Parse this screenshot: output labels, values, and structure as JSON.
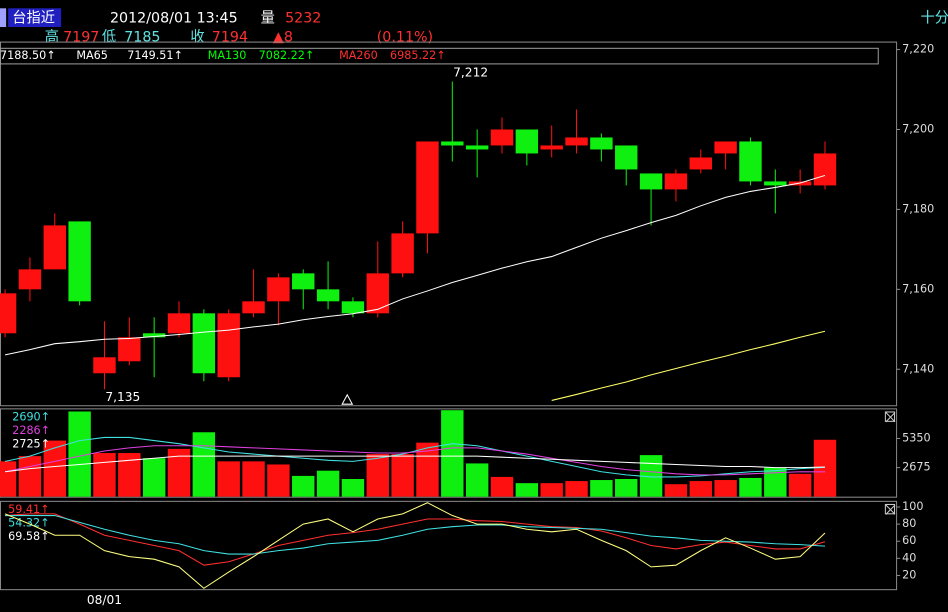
{
  "header": {
    "symbol": "台指近",
    "datetime": "2012/08/01 13:45",
    "volume_label": "量",
    "volume": 5232,
    "period": "十分",
    "high_label": "高",
    "high": 7197,
    "low_label": "低",
    "low": 7185,
    "close_label": "收",
    "close": 7194,
    "change": "▲8",
    "change_pct": "(0.11%)"
  },
  "chart_data": [
    {
      "type": "candlestick",
      "up_color": "#ff1010",
      "down_color": "#10f010",
      "categories": [
        null,
        null,
        null,
        null,
        "08/01",
        null,
        null,
        null,
        null,
        null,
        null,
        null,
        null,
        null,
        null,
        null,
        null,
        null,
        null,
        null,
        null,
        null,
        null,
        null,
        null,
        null,
        null,
        null,
        null,
        null,
        null,
        null,
        null,
        null
      ],
      "open": [
        7149,
        7160,
        7165,
        7177,
        7139,
        7142,
        7149,
        7149,
        7154,
        7138,
        7154,
        7157,
        7164,
        7160,
        7157,
        7154,
        7164,
        7174,
        7197,
        7196,
        7196,
        7200,
        7195,
        7196,
        7198,
        7196,
        7189,
        7185,
        7190,
        7194,
        7197,
        7187,
        7186,
        7186
      ],
      "high": [
        7160,
        7168,
        7179,
        7177,
        7152,
        7153,
        7153,
        7157,
        7155,
        7155,
        7165,
        7164,
        7165,
        7167,
        7158,
        7172,
        7177,
        7197,
        7212,
        7200,
        7203,
        7200,
        7201,
        7205,
        7199,
        7196,
        7189,
        7190,
        7195,
        7197,
        7198,
        7190,
        7190,
        7197
      ],
      "low": [
        7148,
        7157,
        7165,
        7156,
        7135,
        7141,
        7138,
        7148,
        7137,
        7137,
        7153,
        7151,
        7155,
        7155,
        7153,
        7153,
        7163,
        7169,
        7192,
        7188,
        7194,
        7191,
        7193,
        7194,
        7192,
        7186,
        7176,
        7182,
        7189,
        7190,
        7186,
        7179,
        7184,
        7185
      ],
      "close": [
        7159,
        7165,
        7176,
        7157,
        7143,
        7148,
        7148,
        7154,
        7139,
        7154,
        7157,
        7163,
        7160,
        7157,
        7154,
        7164,
        7174,
        7197,
        7196,
        7195,
        7200,
        7194,
        7196,
        7198,
        7195,
        7190,
        7185,
        7189,
        7193,
        7197,
        7187,
        7186,
        7187,
        7194
      ],
      "series": [
        {
          "label": "7188.50↑",
          "color": "#ffffff",
          "label_color": "#ffffff",
          "values": [
            7143.6,
            7144.9,
            7146.4,
            7146.9,
            7147.5,
            7147.7,
            7148.2,
            7148.7,
            7149.3,
            7149.8,
            7150.6,
            7151.3,
            7152.4,
            7153.2,
            7153.9,
            7155,
            7157.6,
            7159.6,
            7161.7,
            7163.5,
            7165.3,
            7166.9,
            7168.2,
            7170.5,
            7172.8,
            7174.7,
            7176.7,
            7178.5,
            7180.9,
            7183,
            7184.5,
            7185.5,
            7186.6,
            7188.5
          ]
        },
        {
          "name": "MA65",
          "label": "7149.51↑",
          "color": "#ffff66",
          "label_color": "#ffffff",
          "values": [
            null,
            null,
            null,
            null,
            null,
            null,
            null,
            null,
            null,
            null,
            null,
            null,
            null,
            null,
            null,
            null,
            null,
            null,
            null,
            null,
            null,
            null,
            7132.2,
            7133.7,
            7135.3,
            7136.8,
            7138.6,
            7140.2,
            7141.8,
            7143.3,
            7144.9,
            7146.4,
            7148,
            7149.5
          ]
        },
        {
          "name": "MA130",
          "label": "7082.22↑",
          "color": "#00ff00",
          "label_color": "#00ff00"
        },
        {
          "name": "MA260",
          "label": "6985.22↑",
          "color": "#ff3030",
          "label_color": "#ff3030"
        }
      ],
      "annotations": [
        {
          "value": 7212,
          "label": "7,212"
        },
        {
          "value": 7135,
          "label": "7,135"
        }
      ],
      "ylim": [
        7131,
        7222
      ],
      "yticks": [
        {
          "value": 7220,
          "label": "7,220"
        },
        {
          "value": 7200,
          "label": "7,200"
        },
        {
          "value": 7180,
          "label": "7,180"
        },
        {
          "value": 7160,
          "label": "7,160"
        },
        {
          "value": 7140,
          "label": "7,140"
        }
      ]
    },
    {
      "type": "bar",
      "values": [
        3247,
        3725,
        5157,
        7831,
        4011,
        4011,
        3534,
        4393,
        5921,
        3247,
        3247,
        2960,
        1910,
        2388,
        1624,
        3916,
        3916,
        4966,
        7950,
        3056,
        1815,
        1242,
        1242,
        1433,
        1528,
        1624,
        3820,
        1146,
        1433,
        1528,
        1719,
        2675,
        2101,
        5232
      ],
      "series": [
        {
          "label": "2690↑",
          "color": "#40e0e0",
          "values": [
            3247,
            3725,
            4489,
            5157,
            5444,
            5444,
            5157,
            4871,
            4489,
            4107,
            3916,
            3725,
            3534,
            3343,
            3247,
            3534,
            3916,
            4489,
            4871,
            4680,
            4202,
            3725,
            3247,
            2770,
            2292,
            2006,
            1815,
            1815,
            1910,
            2101,
            2292,
            2388,
            2579,
            2690
          ]
        },
        {
          "label": "2286↑",
          "color": "#e040e0",
          "values": [
            2292,
            2770,
            3247,
            3725,
            4202,
            4489,
            4680,
            4680,
            4680,
            4584,
            4489,
            4393,
            4298,
            4202,
            4107,
            4011,
            4011,
            4202,
            4489,
            4489,
            4202,
            3916,
            3534,
            3152,
            2770,
            2483,
            2292,
            2101,
            2006,
            2006,
            2101,
            2197,
            2292,
            2286
          ]
        },
        {
          "label": "2725↑",
          "color": "#ffffff",
          "values": [
            2292,
            2579,
            2770,
            2961,
            3152,
            3343,
            3534,
            3725,
            3725,
            3725,
            3725,
            3725,
            3725,
            3725,
            3725,
            3725,
            3725,
            3725,
            3725,
            3725,
            3629,
            3534,
            3438,
            3343,
            3247,
            3152,
            3056,
            2961,
            2865,
            2770,
            2770,
            2674,
            2674,
            2725
          ]
        }
      ],
      "ylim": [
        0,
        8025
      ],
      "yticks": [
        5350,
        2675
      ]
    },
    {
      "type": "line",
      "series": [
        {
          "label": "59.41↑",
          "color": "#ff3030",
          "label_color": "#ff3030",
          "values": [
            90,
            92,
            92,
            80,
            67,
            61,
            55,
            49,
            32,
            36,
            45,
            55,
            61,
            67,
            70,
            74,
            80,
            86,
            86,
            84,
            83,
            80,
            77,
            76,
            72,
            64,
            55,
            51,
            56,
            59,
            55,
            51,
            51,
            59.41
          ]
        },
        {
          "label": "54.32↑",
          "color": "#40e0e0",
          "label_color": "#40e0e0",
          "values": [
            90,
            90,
            90,
            82,
            74,
            67,
            61,
            57,
            49,
            45,
            45,
            49,
            52,
            57,
            59,
            61,
            67,
            74,
            77,
            79,
            79,
            77,
            76,
            75,
            74,
            70,
            66,
            64,
            61,
            60,
            59,
            57,
            56,
            54.32
          ]
        },
        {
          "label": "69.58↑",
          "color": "#ffff80",
          "label_color": "#ffffff",
          "values": [
            92,
            80,
            67,
            67,
            49,
            42,
            39,
            30,
            5,
            24,
            42,
            61,
            80,
            86,
            71,
            86,
            92,
            105,
            90,
            80,
            80,
            74,
            71,
            74,
            61,
            49,
            30,
            32,
            49,
            64,
            52,
            39,
            42,
            69.58
          ]
        }
      ],
      "ylim": [
        4,
        106
      ],
      "yticks": [
        100,
        80,
        60,
        40,
        20
      ]
    }
  ]
}
